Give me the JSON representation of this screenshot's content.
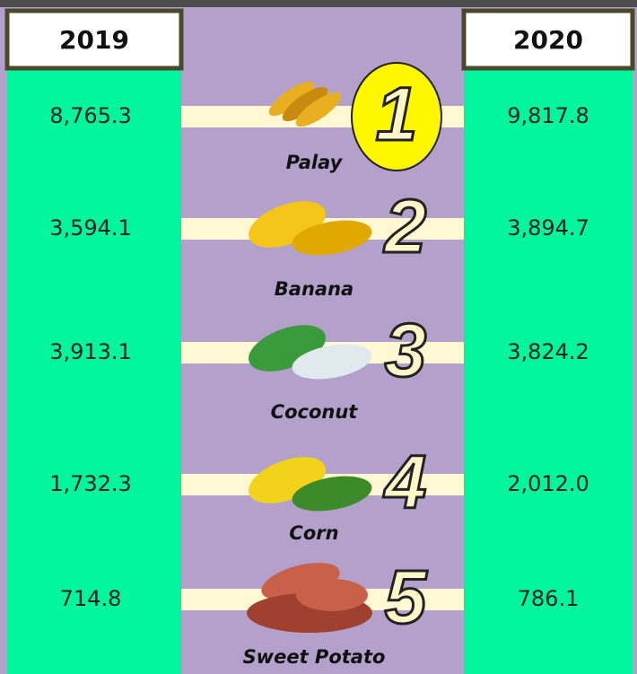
{
  "columns": [
    "2019",
    "2020"
  ],
  "rows": [
    {
      "rank": "1",
      "name": "Palay",
      "values": [
        "8,765.3",
        "9,817.8"
      ]
    },
    {
      "rank": "2",
      "name": "Banana",
      "values": [
        "3,594.1",
        "3,894.7"
      ]
    },
    {
      "rank": "3",
      "name": "Coconut",
      "values": [
        "3,913.1",
        "3,824.2"
      ]
    },
    {
      "rank": "4",
      "name": "Corn",
      "values": [
        "1,732.3",
        "2,012.0"
      ]
    },
    {
      "rank": "5",
      "name": "Sweet Potato",
      "values": [
        "714.8",
        "786.1"
      ]
    }
  ]
}
